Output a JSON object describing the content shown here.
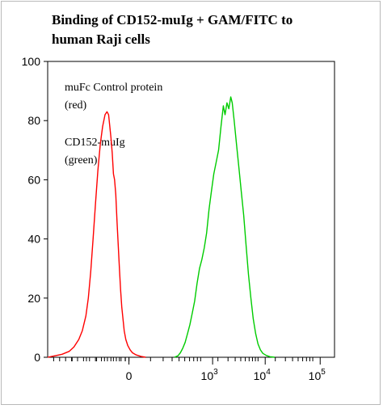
{
  "chart_data": {
    "type": "line",
    "title_lines": [
      "Binding of CD152-muIg + GAM/FITC to",
      "human Raji cells"
    ],
    "xlabel": "",
    "ylabel": "",
    "ylim": [
      0,
      100
    ],
    "y_ticks": [
      "0",
      "20",
      "40",
      "60",
      "80",
      "100"
    ],
    "x_ticks": [
      {
        "base": "0",
        "exp": ""
      },
      {
        "base": "10",
        "exp": "3"
      },
      {
        "base": "10",
        "exp": "4"
      },
      {
        "base": "10",
        "exp": "5"
      }
    ],
    "annotations": [
      "muFc Control protein",
      "(red)",
      "CD152-muIg",
      "(green)"
    ],
    "grid": false,
    "series": [
      {
        "color": "#ff0000",
        "points": [
          [
            0.0,
            0.0
          ],
          [
            0.3,
            0.5
          ],
          [
            0.6,
            1.0
          ],
          [
            0.9,
            2.0
          ],
          [
            1.1,
            3.5
          ],
          [
            1.3,
            6.0
          ],
          [
            1.45,
            9.0
          ],
          [
            1.6,
            14.0
          ],
          [
            1.7,
            20.0
          ],
          [
            1.8,
            29.0
          ],
          [
            1.9,
            40.0
          ],
          [
            2.0,
            52.0
          ],
          [
            2.1,
            63.0
          ],
          [
            2.2,
            72.0
          ],
          [
            2.3,
            78.0
          ],
          [
            2.4,
            82.0
          ],
          [
            2.48,
            83.0
          ],
          [
            2.55,
            82.0
          ],
          [
            2.6,
            78.0
          ],
          [
            2.65,
            74.0
          ],
          [
            2.7,
            69.0
          ],
          [
            2.75,
            62.0
          ],
          [
            2.8,
            60.0
          ],
          [
            2.85,
            55.0
          ],
          [
            2.9,
            46.0
          ],
          [
            2.95,
            38.0
          ],
          [
            3.0,
            30.0
          ],
          [
            3.05,
            23.0
          ],
          [
            3.1,
            17.0
          ],
          [
            3.15,
            13.0
          ],
          [
            3.2,
            9.0
          ],
          [
            3.27,
            6.0
          ],
          [
            3.35,
            4.0
          ],
          [
            3.45,
            2.5
          ],
          [
            3.55,
            1.5
          ],
          [
            3.7,
            0.8
          ],
          [
            3.9,
            0.3
          ],
          [
            4.1,
            0.0
          ]
        ]
      },
      {
        "color": "#00cc00",
        "points": [
          [
            5.3,
            0.0
          ],
          [
            5.45,
            0.5
          ],
          [
            5.55,
            1.5
          ],
          [
            5.65,
            3.0
          ],
          [
            5.75,
            5.0
          ],
          [
            5.85,
            8.0
          ],
          [
            5.95,
            11.0
          ],
          [
            6.05,
            15.0
          ],
          [
            6.15,
            19.0
          ],
          [
            6.25,
            25.0
          ],
          [
            6.35,
            30.0
          ],
          [
            6.45,
            33.0
          ],
          [
            6.55,
            37.0
          ],
          [
            6.65,
            42.0
          ],
          [
            6.75,
            50.0
          ],
          [
            6.85,
            56.0
          ],
          [
            6.95,
            62.0
          ],
          [
            7.05,
            66.0
          ],
          [
            7.15,
            70.0
          ],
          [
            7.25,
            78.0
          ],
          [
            7.35,
            85.0
          ],
          [
            7.42,
            82.0
          ],
          [
            7.5,
            86.0
          ],
          [
            7.58,
            84.0
          ],
          [
            7.66,
            88.0
          ],
          [
            7.72,
            86.0
          ],
          [
            7.8,
            80.0
          ],
          [
            7.9,
            72.0
          ],
          [
            8.0,
            64.0
          ],
          [
            8.1,
            56.0
          ],
          [
            8.2,
            48.0
          ],
          [
            8.3,
            38.0
          ],
          [
            8.4,
            28.0
          ],
          [
            8.5,
            20.0
          ],
          [
            8.6,
            13.0
          ],
          [
            8.7,
            8.0
          ],
          [
            8.8,
            4.5
          ],
          [
            8.9,
            2.5
          ],
          [
            9.0,
            1.3
          ],
          [
            9.15,
            0.6
          ],
          [
            9.3,
            0.2
          ],
          [
            9.5,
            0.0
          ]
        ]
      }
    ]
  }
}
